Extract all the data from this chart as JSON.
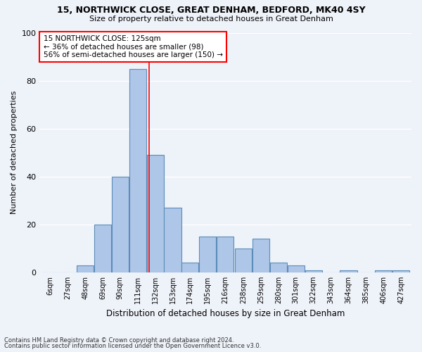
{
  "title1": "15, NORTHWICK CLOSE, GREAT DENHAM, BEDFORD, MK40 4SY",
  "title2": "Size of property relative to detached houses in Great Denham",
  "xlabel": "Distribution of detached houses by size in Great Denham",
  "ylabel": "Number of detached properties",
  "footer1": "Contains HM Land Registry data © Crown copyright and database right 2024.",
  "footer2": "Contains public sector information licensed under the Open Government Licence v3.0.",
  "annotation_line1": "15 NORTHWICK CLOSE: 125sqm",
  "annotation_line2": "← 36% of detached houses are smaller (98)",
  "annotation_line3": "56% of semi-detached houses are larger (150) →",
  "bar_color": "#aec6e8",
  "bar_edge_color": "#5b8db8",
  "fig_facecolor": "#eef2f9",
  "ax_facecolor": "#eef2f9",
  "property_line_x": 125,
  "categories": [
    6,
    27,
    48,
    69,
    90,
    111,
    132,
    153,
    174,
    195,
    216,
    238,
    259,
    280,
    301,
    322,
    343,
    364,
    385,
    406,
    427
  ],
  "cat_labels": [
    "6sqm",
    "27sqm",
    "48sqm",
    "69sqm",
    "90sqm",
    "111sqm",
    "132sqm",
    "153sqm",
    "174sqm",
    "195sqm",
    "216sqm",
    "238sqm",
    "259sqm",
    "280sqm",
    "301sqm",
    "322sqm",
    "343sqm",
    "364sqm",
    "385sqm",
    "406sqm",
    "427sqm"
  ],
  "values": [
    0,
    0,
    3,
    20,
    40,
    85,
    49,
    27,
    4,
    15,
    15,
    10,
    14,
    4,
    3,
    1,
    0,
    1,
    0,
    1,
    1
  ],
  "ylim": [
    0,
    100
  ],
  "bin_width": 21
}
